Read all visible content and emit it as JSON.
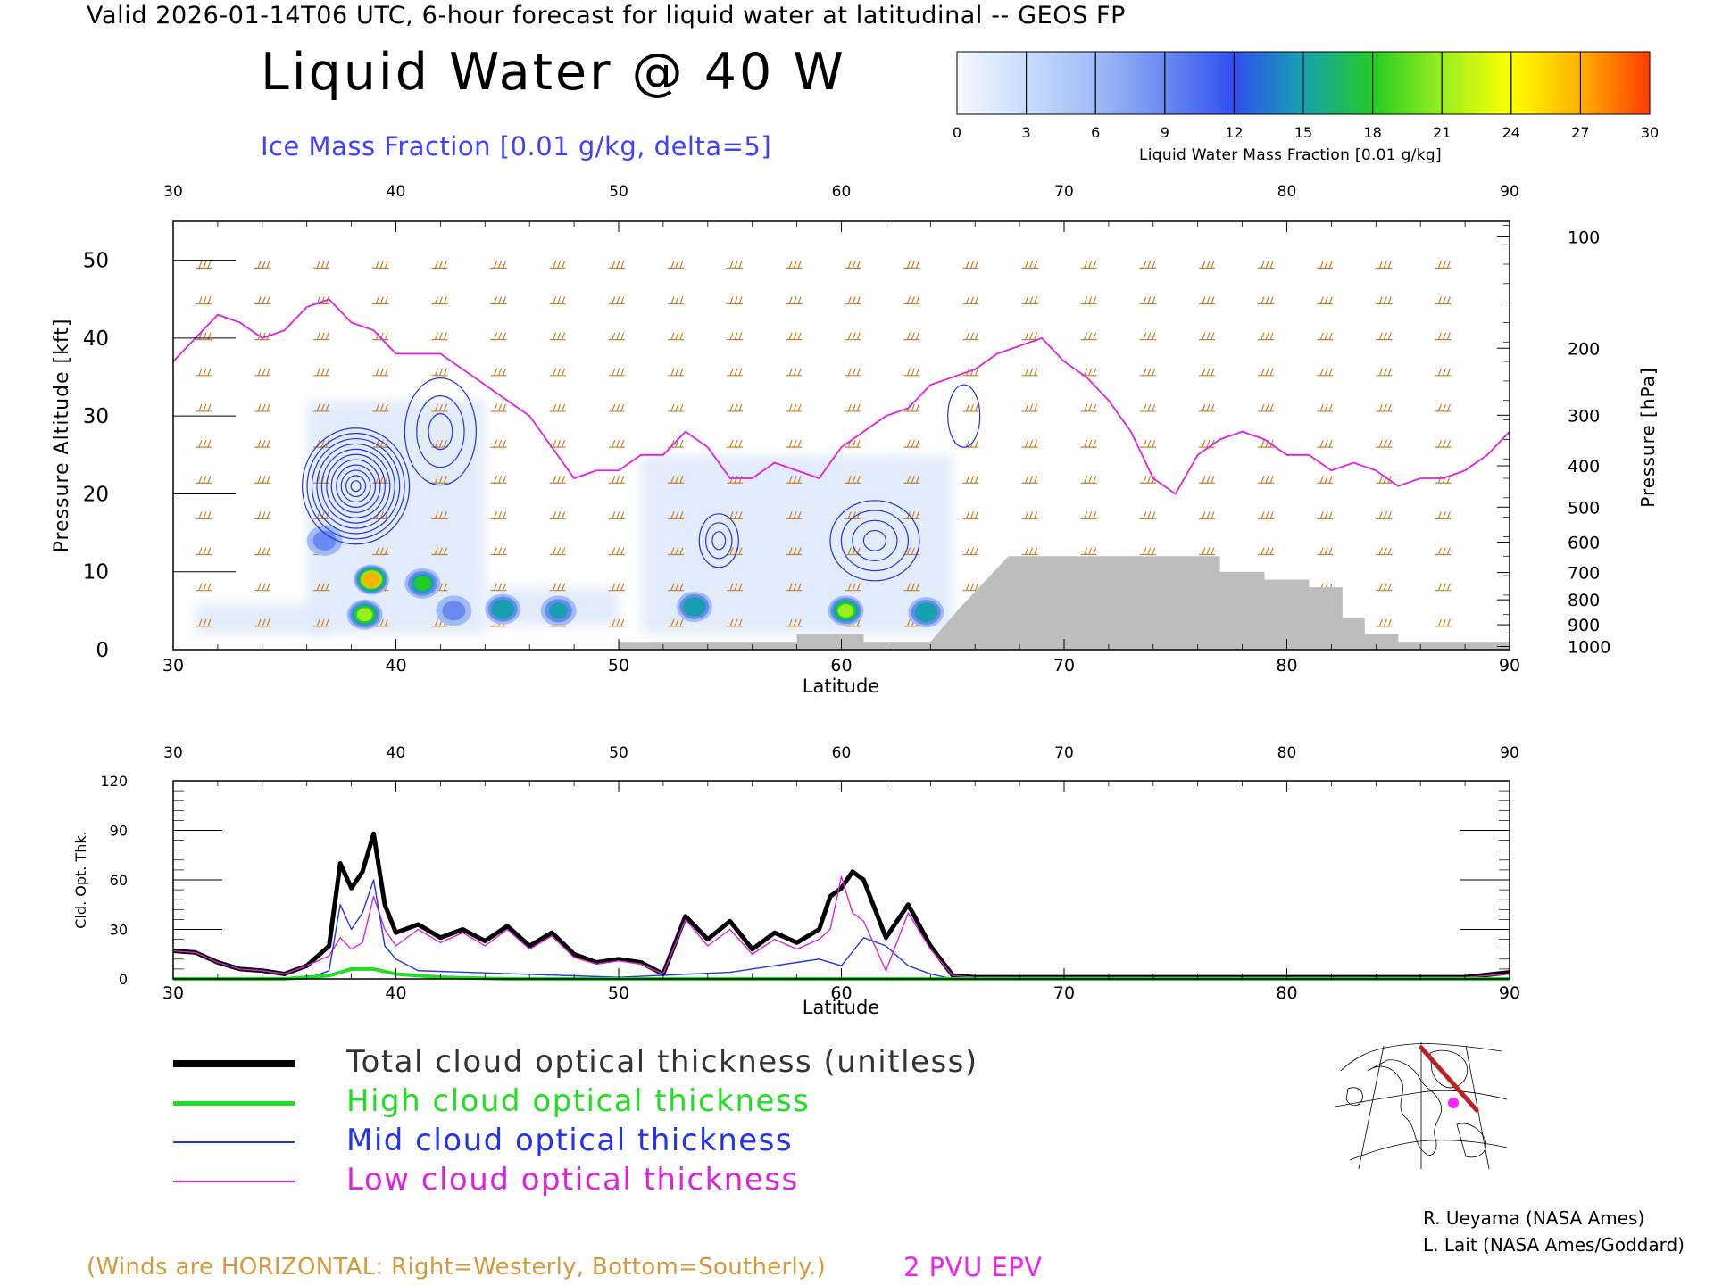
{
  "header": {
    "valid_line": "Valid 2026-01-14T06 UTC, 6-hour forecast for liquid water at latitudinal -- GEOS FP",
    "main_title": "Liquid Water @ 40 W",
    "sub_title": "Ice Mass Fraction [0.01 g/kg, delta=5]"
  },
  "colorbar": {
    "ticks": [
      "0",
      "3",
      "6",
      "9",
      "12",
      "15",
      "18",
      "21",
      "24",
      "27",
      "30"
    ],
    "caption": "Liquid Water Mass Fraction [0.01 g/kg]",
    "colors": [
      "#f5f8ff",
      "#c8dcfb",
      "#a0bcf6",
      "#6a8af0",
      "#3050ee",
      "#18a0b0",
      "#22cc22",
      "#99ee22",
      "#ffff00",
      "#ffb000",
      "#ff3c00"
    ]
  },
  "chart_data": [
    {
      "type": "heatmap",
      "title": "Liquid Water @ 40 W",
      "xlabel": "Latitude",
      "ylabel": "Pressure Altitude [kft]",
      "ylabel_right": "Pressure [hPa]",
      "xlim": [
        30,
        90
      ],
      "ylim": [
        0,
        55
      ],
      "x_ticks": [
        "30",
        "40",
        "50",
        "60",
        "70",
        "80",
        "90"
      ],
      "y_ticks": [
        "0",
        "10",
        "20",
        "30",
        "40",
        "50"
      ],
      "pressure_ticks": [
        {
          "label": "100",
          "kft": 53.0
        },
        {
          "label": "200",
          "kft": 38.7
        },
        {
          "label": "300",
          "kft": 30.1
        },
        {
          "label": "400",
          "kft": 23.6
        },
        {
          "label": "500",
          "kft": 18.3
        },
        {
          "label": "600",
          "kft": 13.8
        },
        {
          "label": "700",
          "kft": 9.9
        },
        {
          "label": "800",
          "kft": 6.4
        },
        {
          "label": "900",
          "kft": 3.2
        },
        {
          "label": "1000",
          "kft": 0.4
        }
      ],
      "liquid_water_blobs": [
        {
          "lat": 38.9,
          "kft": 9.0,
          "peak": 27
        },
        {
          "lat": 38.6,
          "kft": 4.5,
          "peak": 20
        },
        {
          "lat": 41.2,
          "kft": 8.5,
          "peak": 17
        },
        {
          "lat": 44.8,
          "kft": 5.2,
          "peak": 16
        },
        {
          "lat": 47.3,
          "kft": 5.0,
          "peak": 14
        },
        {
          "lat": 53.4,
          "kft": 5.5,
          "peak": 15
        },
        {
          "lat": 60.2,
          "kft": 5.0,
          "peak": 20
        },
        {
          "lat": 63.8,
          "kft": 4.8,
          "peak": 16
        },
        {
          "lat": 36.8,
          "kft": 14.0,
          "peak": 9
        },
        {
          "lat": 42.6,
          "kft": 5.0,
          "peak": 9
        }
      ],
      "epv_2pvu_kft": {
        "lat": [
          30,
          31,
          32,
          33,
          34,
          35,
          36,
          37,
          38,
          39,
          40,
          41,
          42,
          43,
          44,
          45,
          46,
          47,
          48,
          49,
          50,
          51,
          52,
          53,
          54,
          55,
          56,
          57,
          58,
          59,
          60,
          61,
          62,
          63,
          64,
          65,
          66,
          67,
          68,
          69,
          70,
          71,
          72,
          73,
          74,
          75,
          76,
          77,
          78,
          79,
          80,
          81,
          82,
          83,
          84,
          85,
          86,
          87,
          88,
          89,
          90
        ],
        "kft": [
          37,
          40,
          43,
          42,
          40,
          41,
          44,
          45,
          42,
          41,
          38,
          38,
          38,
          36,
          34,
          32,
          30,
          26,
          22,
          23,
          23,
          25,
          25,
          28,
          26,
          22,
          22,
          24,
          23,
          22,
          26,
          28,
          30,
          31,
          34,
          35,
          36,
          38,
          39,
          40,
          37,
          35,
          32,
          28,
          22,
          20,
          25,
          27,
          28,
          27,
          25,
          25,
          23,
          24,
          23,
          21,
          22,
          22,
          23,
          25,
          28
        ]
      },
      "terrain_kft": {
        "lat": [
          30,
          48,
          48,
          50,
          50,
          58,
          58,
          61,
          61,
          64,
          64,
          65.2,
          65.2,
          67.5,
          67.5,
          77,
          77,
          79,
          79,
          81,
          81,
          82.5,
          82.5,
          83.5,
          83.5,
          85,
          85,
          90
        ],
        "kft": [
          0,
          0,
          0,
          0,
          1,
          1,
          2,
          2,
          1,
          1,
          1,
          5,
          5,
          12,
          12,
          12,
          10,
          10,
          9,
          9,
          8,
          8,
          4,
          4,
          2,
          2,
          1,
          1
        ]
      }
    },
    {
      "type": "line",
      "xlabel": "Latitude",
      "ylabel": "Cld. Opt. Thk.",
      "xlim": [
        30,
        90
      ],
      "ylim": [
        0,
        120
      ],
      "x_ticks": [
        "30",
        "40",
        "50",
        "60",
        "70",
        "80",
        "90"
      ],
      "y_ticks": [
        "0",
        "30",
        "60",
        "90",
        "120"
      ],
      "series": [
        {
          "name": "Total cloud optical thickness (unitless)",
          "color": "#000000",
          "x": [
            30,
            31,
            32,
            33,
            34,
            35,
            36,
            37,
            37.5,
            38,
            38.5,
            39,
            39.5,
            40,
            41,
            42,
            43,
            44,
            45,
            46,
            47,
            48,
            49,
            50,
            51,
            52,
            53,
            54,
            55,
            56,
            57,
            58,
            59,
            59.5,
            60,
            60.5,
            61,
            62,
            63,
            64,
            65,
            66,
            70,
            80,
            88,
            90
          ],
          "y": [
            17,
            16,
            10,
            6,
            5,
            3,
            8,
            20,
            70,
            55,
            65,
            88,
            45,
            28,
            33,
            25,
            30,
            23,
            32,
            20,
            28,
            15,
            10,
            12,
            10,
            3,
            38,
            24,
            35,
            18,
            28,
            22,
            30,
            50,
            55,
            65,
            60,
            25,
            45,
            20,
            2,
            1,
            1,
            1,
            1,
            4
          ]
        },
        {
          "name": "High cloud optical thickness",
          "color": "#22dd22",
          "x": [
            30,
            35,
            37,
            38,
            39,
            40,
            42,
            45,
            90
          ],
          "y": [
            0,
            0,
            2,
            6,
            6,
            3,
            1,
            0,
            0
          ]
        },
        {
          "name": "Mid cloud optical thickness",
          "color": "#2233ee",
          "x": [
            30,
            36,
            37,
            37.5,
            38,
            38.5,
            39,
            39.5,
            40,
            41,
            50,
            55,
            57,
            58,
            59,
            60,
            61,
            62,
            63,
            64,
            65,
            90
          ],
          "y": [
            0,
            0,
            5,
            45,
            30,
            40,
            60,
            20,
            12,
            5,
            1,
            4,
            8,
            10,
            12,
            8,
            25,
            20,
            8,
            3,
            0,
            0
          ]
        },
        {
          "name": "Low cloud optical thickness",
          "color": "#dd22dd",
          "x": [
            30,
            31,
            32,
            33,
            34,
            35,
            36,
            37,
            37.5,
            38,
            38.5,
            39,
            39.5,
            40,
            41,
            42,
            43,
            44,
            45,
            46,
            47,
            48,
            49,
            50,
            51,
            52,
            53,
            54,
            55,
            56,
            57,
            58,
            59,
            59.5,
            60,
            60.5,
            61,
            62,
            63,
            64,
            65,
            66,
            70,
            80,
            88,
            90
          ],
          "y": [
            17,
            16,
            10,
            6,
            5,
            3,
            8,
            14,
            25,
            18,
            22,
            50,
            30,
            20,
            30,
            22,
            28,
            20,
            30,
            18,
            26,
            13,
            9,
            11,
            9,
            3,
            36,
            20,
            30,
            15,
            24,
            18,
            24,
            30,
            62,
            40,
            35,
            5,
            40,
            18,
            2,
            1,
            1,
            1,
            1,
            3
          ]
        }
      ]
    }
  ],
  "legend": [
    {
      "label": "Total cloud optical thickness (unitless)",
      "color": "#000000"
    },
    {
      "label": "High cloud optical thickness",
      "color": "#22dd22"
    },
    {
      "label": "Mid cloud optical thickness",
      "color": "#2233ee"
    },
    {
      "label": "Low cloud optical thickness",
      "color": "#dd22dd"
    }
  ],
  "credits": [
    "R. Ueyama (NASA Ames)",
    "L. Lait (NASA Ames/Goddard)"
  ],
  "winds_note": "(Winds are HORIZONTAL: Right=Westerly, Bottom=Southerly.)",
  "pvu_note": "2 PVU EPV"
}
